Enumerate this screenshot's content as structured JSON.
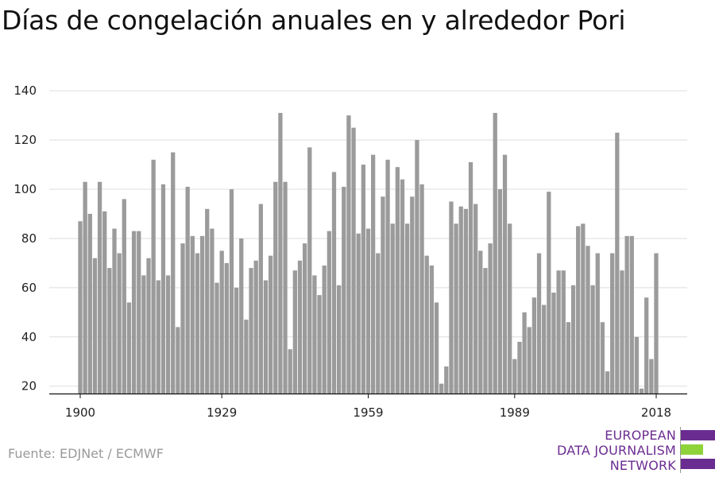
{
  "title": "Días de congelación anuales en y alrededor Pori",
  "source": "Fuente: EDJNet / ECMWF",
  "logo": {
    "line1": "EUROPEAN",
    "line2": "DATA JOURNALISM",
    "line3": "NETWORK",
    "colors": {
      "purple": "#6b2c91",
      "green": "#8fd33b"
    }
  },
  "chart_data": {
    "type": "bar",
    "title": "Días de congelación anuales en y alrededor Pori",
    "xlabel": "",
    "ylabel": "",
    "bar_color": "#9b9b9b",
    "grid_color": "#dddddd",
    "x_start": 1900,
    "x_end": 2018,
    "xticks": [
      1900,
      1929,
      1959,
      1989,
      2018
    ],
    "yticks": [
      20,
      40,
      60,
      80,
      100,
      120,
      140
    ],
    "ylim": [
      17,
      142
    ],
    "grid": true,
    "values": [
      87,
      103,
      90,
      72,
      103,
      91,
      68,
      84,
      74,
      96,
      54,
      83,
      83,
      65,
      72,
      112,
      63,
      102,
      65,
      115,
      44,
      78,
      101,
      81,
      74,
      81,
      92,
      84,
      62,
      75,
      70,
      100,
      60,
      80,
      47,
      68,
      71,
      94,
      63,
      73,
      103,
      131,
      103,
      35,
      67,
      71,
      78,
      117,
      65,
      57,
      69,
      83,
      107,
      61,
      101,
      130,
      125,
      82,
      110,
      84,
      114,
      74,
      97,
      112,
      86,
      109,
      104,
      86,
      97,
      120,
      102,
      73,
      69,
      54,
      21,
      28,
      95,
      86,
      93,
      92,
      111,
      94,
      75,
      68,
      78,
      131,
      100,
      114,
      86,
      31,
      38,
      50,
      44,
      56,
      74,
      53,
      99,
      58,
      67,
      67,
      46,
      61,
      85,
      86,
      77,
      61,
      74,
      46,
      26,
      74,
      123,
      67,
      81,
      81,
      40,
      19,
      56,
      31,
      74
    ]
  }
}
